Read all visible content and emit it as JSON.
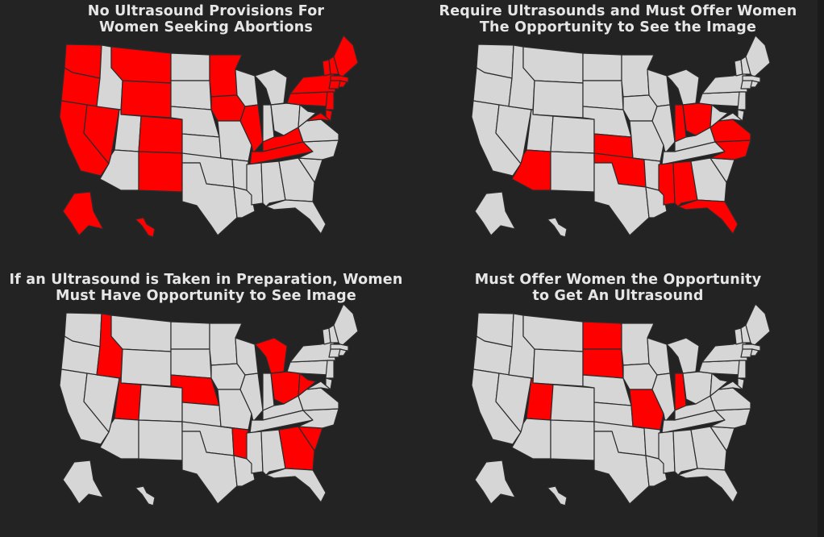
{
  "colors": {
    "background": "#232323",
    "state_default": "#d6d6d6",
    "state_highlight": "#ff0000",
    "border": "#2b2b2b",
    "title": "#e6e6e6"
  },
  "panels": [
    {
      "title_line1": "No Ultrasound Provisions For",
      "title_line2": "Women Seeking Abortions",
      "highlighted": [
        "WA",
        "OR",
        "CA",
        "NV",
        "MT",
        "WY",
        "CO",
        "NM",
        "MN",
        "IA",
        "IL",
        "KY",
        "TN",
        "NY",
        "PA",
        "NJ",
        "VT",
        "NH",
        "ME",
        "MA",
        "CT",
        "RI",
        "DE",
        "MD",
        "AK",
        "HI"
      ]
    },
    {
      "title_line1": "Require Ultrasounds and Must Offer Women",
      "title_line2": "The Opportunity to See the Image",
      "highlighted": [
        "AZ",
        "KS",
        "OK",
        "IN",
        "OH",
        "MS",
        "AL",
        "FL",
        "VA",
        "NC"
      ]
    },
    {
      "title_line1": "If an Ultrasound is Taken in Preparation, Women",
      "title_line2": "Must Have Opportunity to See Image",
      "highlighted": [
        "ID",
        "UT",
        "NE",
        "AR",
        "MI",
        "OH",
        "WV",
        "GA",
        "SC"
      ]
    },
    {
      "title_line1": "Must Offer Women the Opportunity",
      "title_line2": "to Get An Ultrasound",
      "highlighted": [
        "UT",
        "ND",
        "SD",
        "MO",
        "IN"
      ]
    }
  ]
}
